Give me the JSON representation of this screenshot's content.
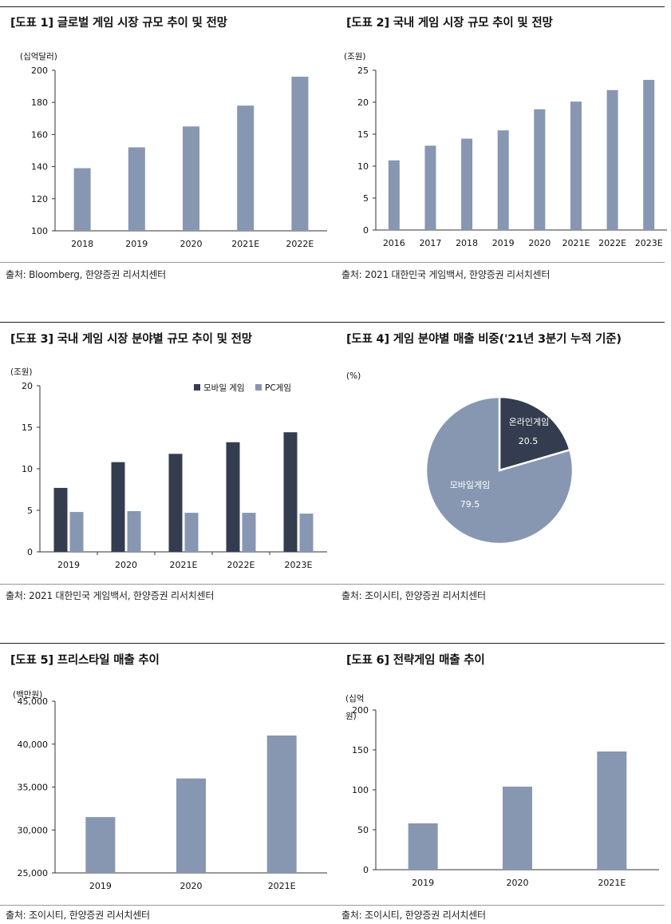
{
  "charts": [
    {
      "title": "[도표 1] 글로벌 게임 시장 규모 추이 및 전망",
      "source": "출처: Bloomberg, 한양증권 리서치센터",
      "chart_data": {
        "type": "bar",
        "unit": "(십억달러)",
        "categories": [
          "2018",
          "2019",
          "2020",
          "2021E",
          "2022E"
        ],
        "values": [
          139,
          152,
          165,
          178,
          196
        ],
        "ylim": [
          100,
          200
        ],
        "yticks": [
          100,
          120,
          140,
          160,
          180,
          200
        ],
        "colors": [
          "#8797b1"
        ]
      }
    },
    {
      "title": "[도표 2] 국내 게임 시장 규모 추이 및 전망",
      "source": "출처: 2021 대한민국 게임백서, 한양증권 리서치센터",
      "chart_data": {
        "type": "bar",
        "unit": "(조원)",
        "categories": [
          "2016",
          "2017",
          "2018",
          "2019",
          "2020",
          "2021E",
          "2022E",
          "2023E"
        ],
        "values": [
          10.9,
          13.2,
          14.3,
          15.6,
          18.9,
          20.1,
          21.9,
          23.5
        ],
        "ylim": [
          0,
          25
        ],
        "yticks": [
          0,
          5,
          10,
          15,
          20,
          25
        ],
        "colors": [
          "#8797b1"
        ]
      }
    },
    {
      "title": "[도표 3] 국내 게임 시장 분야별 규모 추이 및 전망",
      "source": "출처: 2021 대한민국 게임백서, 한양증권 리서치센터",
      "chart_data": {
        "type": "bar",
        "unit": "(조원)",
        "categories": [
          "2019",
          "2020",
          "2021E",
          "2022E",
          "2023E"
        ],
        "series": [
          {
            "name": "모바일 게임",
            "values": [
              7.7,
              10.8,
              11.8,
              13.2,
              14.4
            ]
          },
          {
            "name": "PC게임",
            "values": [
              4.8,
              4.9,
              4.7,
              4.7,
              4.6
            ]
          }
        ],
        "ylim": [
          0,
          20
        ],
        "yticks": [
          0,
          5,
          10,
          15,
          20
        ],
        "legend": "top-right",
        "colors": [
          "#343d4f",
          "#8797b1"
        ]
      }
    },
    {
      "title": "[도표 4] 게임 분야별 매출 비중('21년 3분기 누적 기준)",
      "source": "출처: 조이시티, 한양증권 리서치센터",
      "chart_data": {
        "type": "pie",
        "unit": "(%)",
        "slices": [
          {
            "label": "온라인게임",
            "value": 20.5,
            "value_label": "20.5"
          },
          {
            "label": "모바일게임",
            "value": 79.5,
            "value_label": "79.5"
          }
        ],
        "colors": [
          "#343d4f",
          "#8797b1"
        ]
      }
    },
    {
      "title": "[도표 5] 프리스타일 매출 추이",
      "source": "출처: 조이시티, 한양증권 리서치센터",
      "chart_data": {
        "type": "bar",
        "unit": "(백만원)",
        "categories": [
          "2019",
          "2020",
          "2021E"
        ],
        "values": [
          31500,
          36000,
          41000
        ],
        "ylim": [
          25000,
          45000
        ],
        "yticks": [
          25000,
          30000,
          35000,
          40000,
          45000
        ],
        "ytick_labels": [
          "25,000",
          "30,000",
          "35,000",
          "40,000",
          "45,000"
        ],
        "colors": [
          "#8797b1"
        ]
      }
    },
    {
      "title": "[도표 6] 전략게임 매출 추이",
      "source": "출처: 조이시티, 한양증권 리서치센터",
      "chart_data": {
        "type": "bar",
        "unit_lines": [
          "(십억",
          "원)"
        ],
        "categories": [
          "2019",
          "2020",
          "2021E"
        ],
        "values": [
          58,
          104,
          148
        ],
        "ylim": [
          0,
          200
        ],
        "yticks": [
          0,
          50,
          100,
          150,
          200
        ],
        "colors": [
          "#8797b1"
        ]
      }
    }
  ]
}
